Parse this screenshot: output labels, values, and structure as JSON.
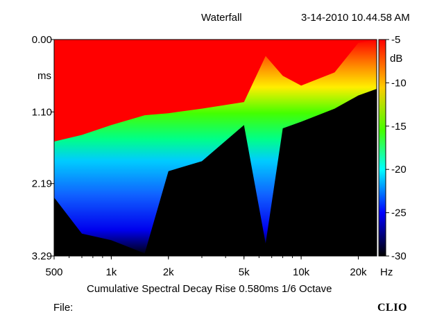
{
  "header": {
    "title": "Waterfall",
    "timestamp": "3-14-2010 10.44.58 AM"
  },
  "footer": {
    "caption": "Cumulative Spectral Decay  Rise 0.580ms  1/6 Octave",
    "file_label": "File:",
    "brand": "CLIO"
  },
  "chart_data": {
    "type": "heatmap",
    "title": "Waterfall",
    "subtitle": "Cumulative Spectral Decay  Rise 0.580ms  1/6 Octave",
    "xlabel": "Hz",
    "ylabel": "ms",
    "x_scale": "log",
    "xlim": [
      500,
      25000
    ],
    "ylim": [
      0.0,
      3.29
    ],
    "y_inverted": true,
    "x_ticks": [
      {
        "value": 500,
        "label": "500"
      },
      {
        "value": 1000,
        "label": "1k"
      },
      {
        "value": 2000,
        "label": "2k"
      },
      {
        "value": 5000,
        "label": "5k"
      },
      {
        "value": 10000,
        "label": "10k"
      },
      {
        "value": 20000,
        "label": "20k"
      }
    ],
    "y_ticks": [
      {
        "value": 0.0,
        "label": "0.00"
      },
      {
        "value": 1.1,
        "label": "1.10"
      },
      {
        "value": 2.19,
        "label": "2.19"
      },
      {
        "value": 3.29,
        "label": "3.29"
      }
    ],
    "colorbar": {
      "unit": "dB",
      "min": -30,
      "max": -5,
      "ticks": [
        -5,
        -10,
        -15,
        -20,
        -25,
        -30
      ],
      "tick_labels": [
        "-5",
        "-10",
        "-15",
        "-20",
        "-25",
        "-30"
      ]
    },
    "red_region_boundary_ms": [
      {
        "freq": 500,
        "time": 1.55
      },
      {
        "freq": 700,
        "time": 1.45
      },
      {
        "freq": 1000,
        "time": 1.3
      },
      {
        "freq": 1500,
        "time": 1.15
      },
      {
        "freq": 2000,
        "time": 1.12
      },
      {
        "freq": 3000,
        "time": 1.05
      },
      {
        "freq": 5000,
        "time": 0.95
      },
      {
        "freq": 6500,
        "time": 0.25
      },
      {
        "freq": 8000,
        "time": 0.55
      },
      {
        "freq": 10000,
        "time": 0.7
      },
      {
        "freq": 15000,
        "time": 0.5
      },
      {
        "freq": 20000,
        "time": 0.05
      },
      {
        "freq": 25000,
        "time": 0.0
      }
    ],
    "noise_floor_boundary_ms": [
      {
        "freq": 500,
        "time": 2.4
      },
      {
        "freq": 700,
        "time": 2.95
      },
      {
        "freq": 1000,
        "time": 3.05
      },
      {
        "freq": 1500,
        "time": 3.25
      },
      {
        "freq": 2000,
        "time": 2.0
      },
      {
        "freq": 3000,
        "time": 1.85
      },
      {
        "freq": 5000,
        "time": 1.3
      },
      {
        "freq": 6500,
        "time": 3.1
      },
      {
        "freq": 8000,
        "time": 1.35
      },
      {
        "freq": 10000,
        "time": 1.25
      },
      {
        "freq": 15000,
        "time": 1.05
      },
      {
        "freq": 20000,
        "time": 0.85
      },
      {
        "freq": 25000,
        "time": 0.75
      }
    ]
  }
}
